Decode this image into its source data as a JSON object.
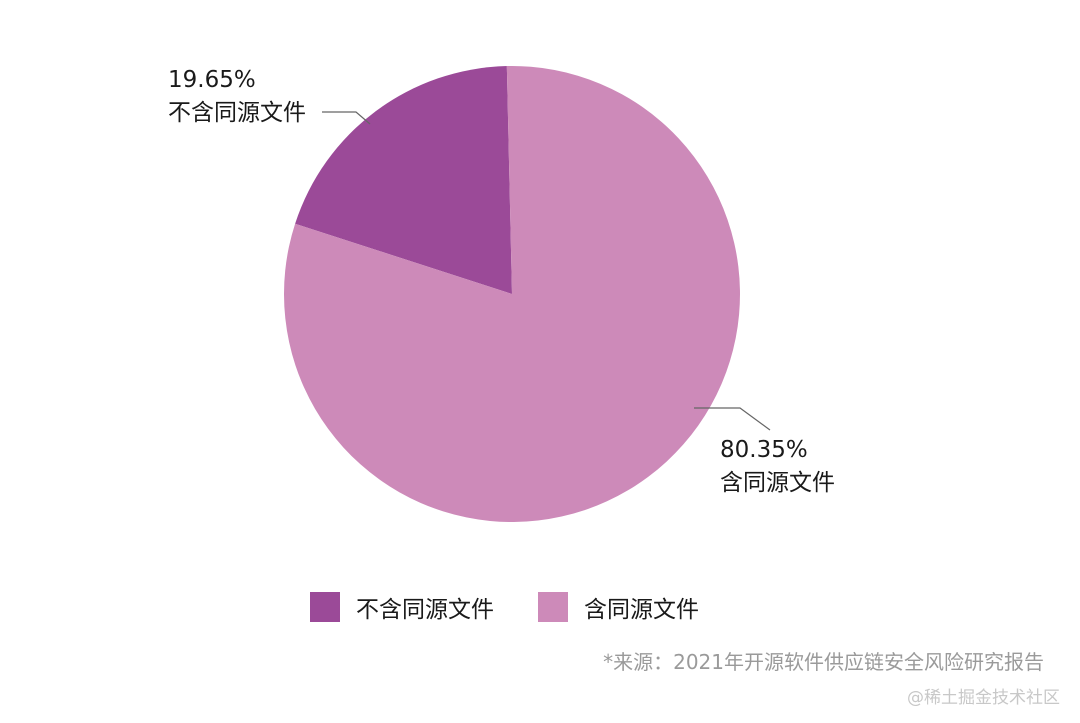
{
  "chart_data": {
    "type": "pie",
    "slices": [
      {
        "name": "不含同源文件",
        "value": 19.65,
        "label": "19.65%",
        "color": "#9b4a98"
      },
      {
        "name": "含同源文件",
        "value": 80.35,
        "label": "80.35%",
        "color": "#cd8ab9"
      }
    ],
    "legend_position": "bottom"
  },
  "legend": {
    "items": [
      {
        "label": "不含同源文件",
        "color": "#9b4a98"
      },
      {
        "label": "含同源文件",
        "color": "#cd8ab9"
      }
    ]
  },
  "source_note": "*来源：2021年开源软件供应链安全风险研究报告",
  "watermark": "@稀土掘金技术社区"
}
